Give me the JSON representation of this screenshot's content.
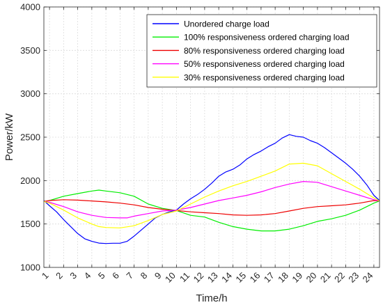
{
  "chart_data": {
    "type": "line",
    "xlabel": "Time/h",
    "ylabel": "Power/kW",
    "xlim": [
      0.6,
      24.4
    ],
    "ylim": [
      1000,
      4000
    ],
    "xticks": [
      1,
      2,
      3,
      4,
      5,
      6,
      7,
      8,
      9,
      10,
      11,
      12,
      13,
      14,
      15,
      16,
      17,
      18,
      19,
      20,
      21,
      22,
      23,
      24
    ],
    "xtick_labels": [
      "1",
      "2",
      "3",
      "4",
      "5",
      "6",
      "7",
      "8",
      "9",
      "10",
      "11",
      "12",
      "13",
      "14",
      "15",
      "16",
      "17",
      "18",
      "19",
      "20",
      "21",
      "22",
      "23",
      "24"
    ],
    "yticks": [
      1000,
      1500,
      2000,
      2500,
      3000,
      3500,
      4000
    ],
    "ytick_labels": [
      "1000",
      "1500",
      "2000",
      "2500",
      "3000",
      "3500",
      "4000"
    ],
    "grid": true,
    "legend_position": "top-right",
    "series": [
      {
        "name": "Unordered charge load",
        "color": "#0000ff",
        "x": [
          0.6,
          1,
          1.5,
          2,
          2.5,
          3,
          3.5,
          4,
          4.5,
          5,
          5.5,
          6,
          6.5,
          7,
          7.5,
          8,
          8.5,
          9,
          9.5,
          10,
          10.5,
          11,
          11.5,
          12,
          12.5,
          13,
          13.5,
          14,
          14.5,
          15,
          15.5,
          16,
          16.5,
          17,
          17.5,
          18,
          18.5,
          19,
          19.5,
          20,
          20.5,
          21,
          21.5,
          22,
          22.5,
          23,
          23.5,
          24,
          24.4
        ],
        "y": [
          1770,
          1710,
          1640,
          1550,
          1470,
          1390,
          1330,
          1300,
          1280,
          1275,
          1278,
          1278,
          1300,
          1360,
          1430,
          1500,
          1570,
          1610,
          1640,
          1660,
          1730,
          1790,
          1840,
          1900,
          1970,
          2050,
          2100,
          2130,
          2180,
          2250,
          2300,
          2340,
          2390,
          2430,
          2490,
          2530,
          2510,
          2500,
          2460,
          2430,
          2380,
          2320,
          2260,
          2200,
          2130,
          2050,
          1950,
          1830,
          1770
        ]
      },
      {
        "name": "100% responsiveness ordered charging load",
        "color": "#00ee00",
        "x": [
          0.6,
          1,
          2,
          3,
          4,
          4.5,
          5,
          6,
          7,
          8,
          9,
          10,
          11,
          12,
          13,
          14,
          15,
          16,
          17,
          18,
          19,
          20,
          21,
          22,
          23,
          24,
          24.4
        ],
        "y": [
          1760,
          1770,
          1820,
          1850,
          1880,
          1890,
          1880,
          1860,
          1820,
          1730,
          1680,
          1655,
          1600,
          1580,
          1520,
          1470,
          1440,
          1420,
          1420,
          1440,
          1480,
          1530,
          1560,
          1600,
          1660,
          1740,
          1765
        ]
      },
      {
        "name": "80% responsiveness ordered charging load",
        "color": "#ee0000",
        "x": [
          0.6,
          1,
          2,
          3,
          4,
          5,
          6,
          7,
          8,
          9,
          10,
          11,
          12,
          13,
          14,
          15,
          16,
          17,
          18,
          19,
          20,
          21,
          22,
          23,
          24,
          24.4
        ],
        "y": [
          1760,
          1770,
          1780,
          1775,
          1765,
          1755,
          1740,
          1720,
          1690,
          1670,
          1655,
          1640,
          1630,
          1620,
          1605,
          1600,
          1605,
          1620,
          1650,
          1680,
          1700,
          1710,
          1720,
          1740,
          1770,
          1765
        ]
      },
      {
        "name": "50% responsiveness ordered charging load",
        "color": "#ff00ff",
        "x": [
          0.6,
          1,
          2,
          3,
          4,
          5,
          6,
          6.5,
          7,
          8,
          9,
          10,
          11,
          12,
          13,
          14,
          15,
          16,
          17,
          18,
          19,
          20,
          21,
          22,
          23,
          24,
          24.4
        ],
        "y": [
          1760,
          1750,
          1700,
          1640,
          1600,
          1575,
          1570,
          1570,
          1590,
          1620,
          1650,
          1660,
          1690,
          1730,
          1770,
          1800,
          1830,
          1870,
          1920,
          1960,
          1990,
          1980,
          1930,
          1880,
          1830,
          1780,
          1765
        ]
      },
      {
        "name": "30% responsiveness ordered charging load",
        "color": "#ffff00",
        "x": [
          0.6,
          1,
          2,
          3,
          4,
          4.5,
          5,
          6,
          7,
          8,
          9,
          10,
          11,
          12,
          13,
          14,
          15,
          16,
          17,
          18,
          19,
          20,
          21,
          22,
          23,
          24,
          24.4
        ],
        "y": [
          1760,
          1740,
          1660,
          1570,
          1500,
          1470,
          1460,
          1455,
          1480,
          1540,
          1610,
          1650,
          1730,
          1810,
          1880,
          1940,
          1990,
          2050,
          2110,
          2190,
          2200,
          2170,
          2080,
          1990,
          1900,
          1800,
          1765
        ]
      }
    ]
  }
}
